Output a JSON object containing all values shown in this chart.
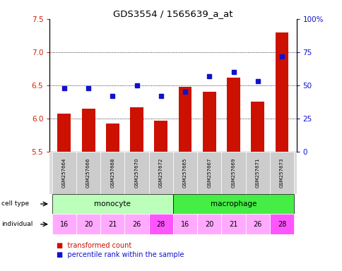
{
  "title": "GDS3554 / 1565639_a_at",
  "samples": [
    "GSM257664",
    "GSM257666",
    "GSM257668",
    "GSM257670",
    "GSM257672",
    "GSM257665",
    "GSM257667",
    "GSM257669",
    "GSM257671",
    "GSM257673"
  ],
  "bar_values": [
    6.07,
    6.15,
    5.93,
    6.17,
    5.97,
    6.48,
    6.4,
    6.62,
    6.25,
    7.3
  ],
  "dot_values": [
    48,
    48,
    42,
    50,
    42,
    45,
    57,
    60,
    53,
    72
  ],
  "ylim_left": [
    5.5,
    7.5
  ],
  "ylim_right": [
    0,
    100
  ],
  "yticks_left": [
    5.5,
    6.0,
    6.5,
    7.0,
    7.5
  ],
  "yticks_right": [
    0,
    25,
    50,
    75,
    100
  ],
  "ytick_labels_right": [
    "0",
    "25",
    "50",
    "75",
    "100%"
  ],
  "bar_color": "#CC1100",
  "dot_color": "#1111CC",
  "individuals": [
    16,
    20,
    21,
    26,
    28,
    16,
    20,
    21,
    26,
    28
  ],
  "individual_highlight_indices": [
    4,
    9
  ],
  "monocyte_color": "#BBFFBB",
  "macrophage_color": "#44EE44",
  "individual_normal_color": "#FFAAFF",
  "individual_highlight_color": "#FF55FF",
  "legend_red": "transformed count",
  "legend_blue": "percentile rank within the sample"
}
